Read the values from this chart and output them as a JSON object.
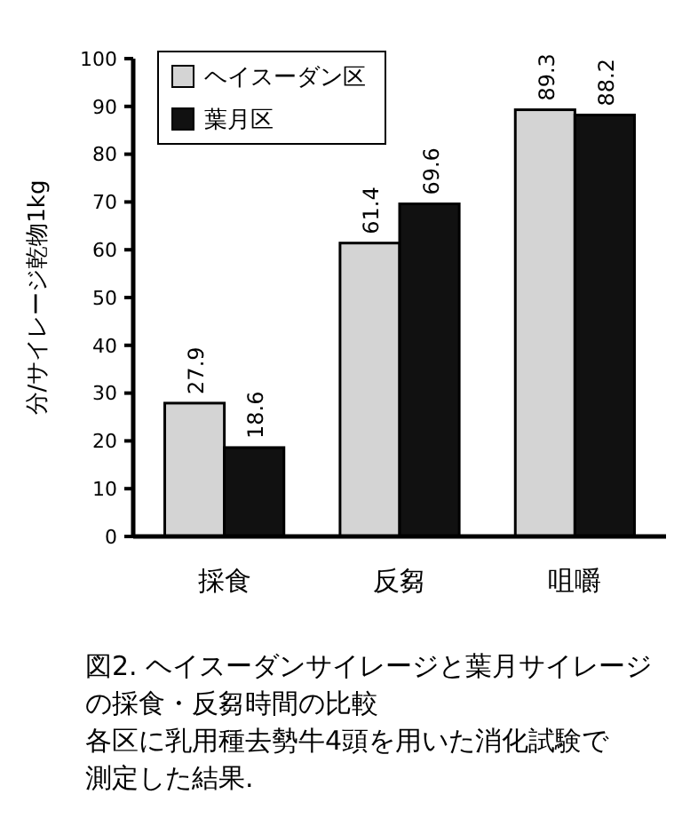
{
  "chart_data": {
    "type": "bar",
    "title": "図2. ヘイスーダンサイレージと葉月サイレージの採食・反芻時間の比較",
    "ylabel": "分/サイレージ乾物1kg",
    "categories": [
      "採食",
      "反芻",
      "咀嚼"
    ],
    "series": [
      {
        "name": "ヘイスーダン区",
        "color": "#d4d4d4",
        "values": [
          27.9,
          61.4,
          89.3
        ]
      },
      {
        "name": "葉月区",
        "color": "#111111",
        "values": [
          18.6,
          69.6,
          88.2
        ]
      }
    ],
    "ylim": [
      0,
      100
    ],
    "yticks": [
      0,
      10,
      20,
      30,
      40,
      50,
      60,
      70,
      80,
      90,
      100
    ],
    "grid": false,
    "legend": "top left",
    "data_labels": true,
    "annotations": [
      "各区に乳用種去勢牛4頭を用いた消化試験で測定した結果."
    ]
  }
}
